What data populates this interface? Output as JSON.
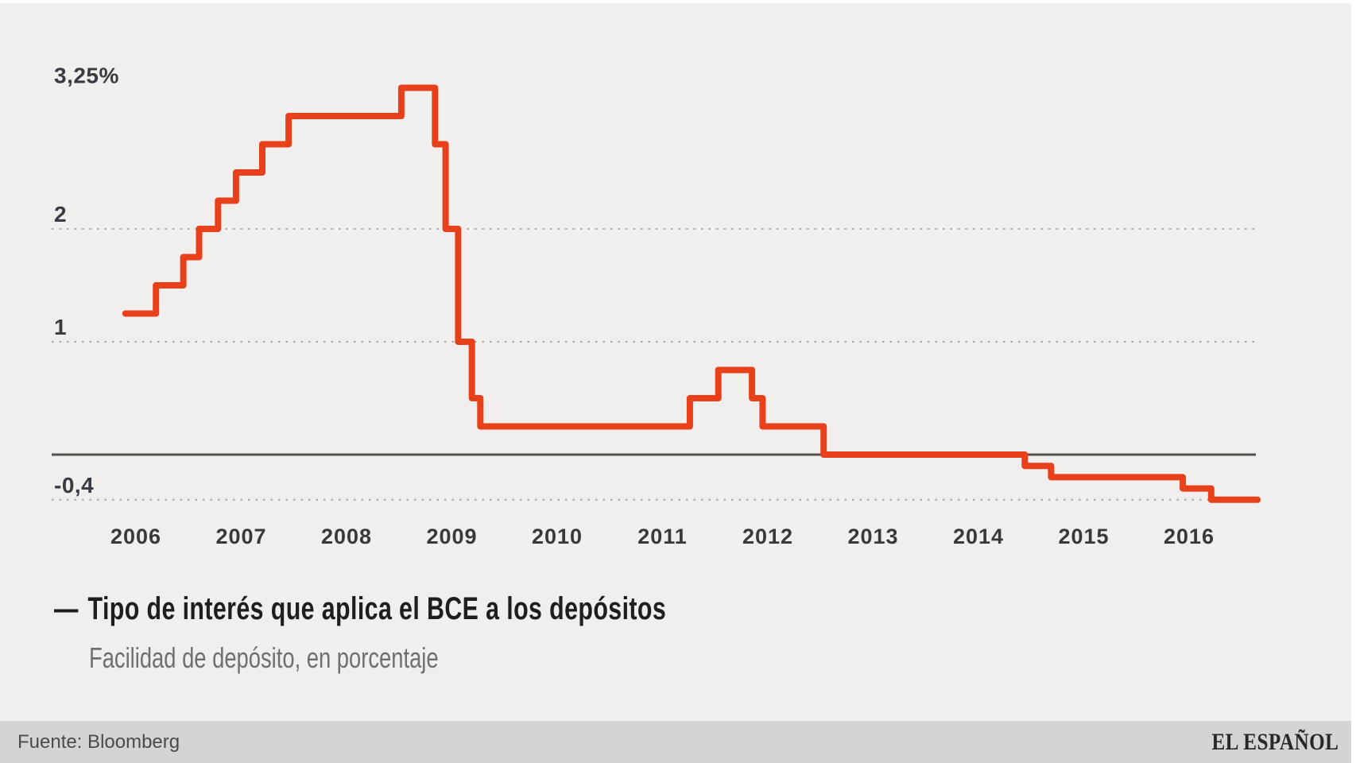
{
  "page": {
    "background": "#ffffff",
    "panel_background": "#f0efed",
    "footer_background": "#d6d4d2"
  },
  "chart_data": {
    "type": "line",
    "step": true,
    "title": "Tipo de interés que aplica el BCE a los depósitos",
    "subtitle": "Facilidad de depósito, en porcentaje",
    "xlabel": "",
    "ylabel": "",
    "xlim": [
      2005.9,
      2016.65
    ],
    "ylim": [
      -0.55,
      3.45
    ],
    "grid": "horizontal dotted",
    "legend_position": "bottom-left",
    "x_ticks": [
      "2006",
      "2007",
      "2008",
      "2009",
      "2010",
      "2011",
      "2012",
      "2013",
      "2014",
      "2015",
      "2016"
    ],
    "y_axis": {
      "top_label": "3,25%",
      "top_value": 3.25,
      "gridlines": [
        {
          "label": "2",
          "value": 2
        },
        {
          "label": "1",
          "value": 1
        },
        {
          "label": "-0,4",
          "value": -0.4
        }
      ],
      "zero_line_value": 0
    },
    "series": [
      {
        "name": "Tipo de interés que aplica el BCE a los depósitos",
        "color": "#e8401a",
        "unit": "%",
        "points": [
          {
            "date": "2005",
            "t": 2005.9,
            "value": 1.25
          },
          {
            "date": "mar 2006",
            "t": 2006.19,
            "value": 1.5
          },
          {
            "date": "jun 2006",
            "t": 2006.45,
            "value": 1.75
          },
          {
            "date": "ago 2006",
            "t": 2006.6,
            "value": 2.0
          },
          {
            "date": "oct 2006",
            "t": 2006.78,
            "value": 2.25
          },
          {
            "date": "dic 2006",
            "t": 2006.95,
            "value": 2.5
          },
          {
            "date": "mar 2007",
            "t": 2007.2,
            "value": 2.75
          },
          {
            "date": "jun 2007",
            "t": 2007.45,
            "value": 3.0
          },
          {
            "date": "jul 2008",
            "t": 2008.52,
            "value": 3.25
          },
          {
            "date": "nov 2008",
            "t": 2008.84,
            "value": 2.75
          },
          {
            "date": "dic 2008",
            "t": 2008.94,
            "value": 2.0
          },
          {
            "date": "ene 2009",
            "t": 2009.06,
            "value": 1.0
          },
          {
            "date": "mar 2009",
            "t": 2009.19,
            "value": 0.5
          },
          {
            "date": "abr 2009",
            "t": 2009.27,
            "value": 0.25
          },
          {
            "date": "abr 2011",
            "t": 2011.26,
            "value": 0.5
          },
          {
            "date": "jul 2011",
            "t": 2011.53,
            "value": 0.75
          },
          {
            "date": "nov 2011",
            "t": 2011.85,
            "value": 0.5
          },
          {
            "date": "dic 2011",
            "t": 2011.95,
            "value": 0.25
          },
          {
            "date": "jul 2012",
            "t": 2012.53,
            "value": 0.0
          },
          {
            "date": "jun 2014",
            "t": 2014.44,
            "value": -0.1
          },
          {
            "date": "sep 2014",
            "t": 2014.69,
            "value": -0.2
          },
          {
            "date": "dic 2015",
            "t": 2015.94,
            "value": -0.3
          },
          {
            "date": "mar 2016",
            "t": 2016.21,
            "value": -0.4
          }
        ],
        "x_end": 2016.65,
        "end_value": -0.4
      }
    ]
  },
  "legend": {
    "dash": "—"
  },
  "footer": {
    "source_label": "Fuente: Bloomberg",
    "brand": "EL ESPAÑOL"
  },
  "colors": {
    "line": "#e8401a",
    "grid_dotted": "#a9a7a4",
    "zero_axis": "#55504c",
    "axis_label": "#3a3a42",
    "year_label": "#3a3936",
    "title_text": "#1f1e1c",
    "subtitle_text": "#716f6c",
    "source_text": "#4c4b49",
    "brand_text": "#2a2724"
  }
}
